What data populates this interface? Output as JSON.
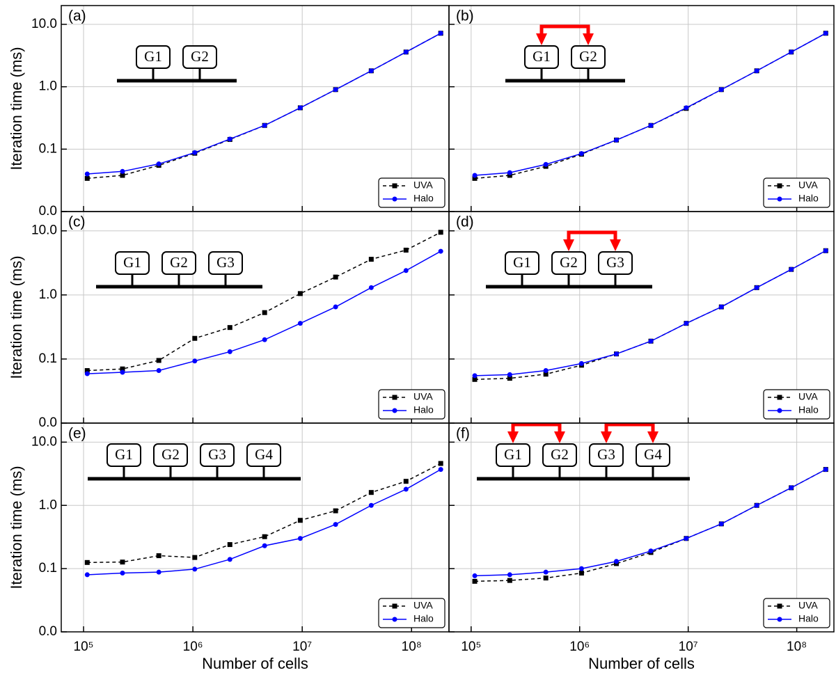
{
  "chart_data": [
    {
      "type": "line",
      "label": "(a)",
      "ylabel": "Iteration time (ms)",
      "annotations": [
        "G1",
        "G2"
      ],
      "x": [
        108000,
        227000,
        488000,
        1040000,
        2180000,
        4530000,
        9600000,
        20200000,
        42800000,
        89000000,
        185000000
      ],
      "series": [
        {
          "name": "UVA",
          "color": "#000000",
          "linestyle": "dashed",
          "marker": "square",
          "values": [
            0.034,
            0.038,
            0.055,
            0.086,
            0.143,
            0.24,
            0.46,
            0.9,
            1.8,
            3.6,
            7.2
          ]
        },
        {
          "name": "Halo",
          "color": "#0000ff",
          "linestyle": "solid",
          "marker": "circle",
          "values": [
            0.04,
            0.044,
            0.058,
            0.088,
            0.145,
            0.24,
            0.46,
            0.9,
            1.8,
            3.6,
            7.2
          ]
        }
      ],
      "xlim": [
        62500,
        220000000
      ],
      "ylim": [
        0.01,
        20
      ],
      "log_x": true,
      "log_y": true,
      "grid": true,
      "legend": "lower right",
      "xticks": [
        100000,
        1000000,
        10000000,
        100000000
      ],
      "show_xticklabels": false,
      "yticks": [
        {
          "value": 0.01,
          "label": "0.0"
        },
        0.1,
        {
          "value": 1,
          "label": "1.0"
        },
        {
          "value": 10,
          "label": "10.0"
        }
      ],
      "show_yticklabels": true
    },
    {
      "type": "line",
      "label": "(b)",
      "annotations": [
        "G1",
        "G2"
      ],
      "x": [
        108000,
        227000,
        488000,
        1040000,
        2180000,
        4530000,
        9600000,
        20200000,
        42800000,
        89000000,
        185000000
      ],
      "series": [
        {
          "name": "UVA",
          "color": "#000000",
          "linestyle": "dashed",
          "marker": "square",
          "values": [
            0.034,
            0.038,
            0.053,
            0.083,
            0.14,
            0.24,
            0.45,
            0.9,
            1.8,
            3.6,
            7.2
          ]
        },
        {
          "name": "Halo",
          "color": "#0000ff",
          "linestyle": "solid",
          "marker": "circle",
          "values": [
            0.038,
            0.042,
            0.057,
            0.085,
            0.14,
            0.24,
            0.46,
            0.9,
            1.8,
            3.6,
            7.2
          ]
        }
      ],
      "xlim": [
        62500,
        220000000
      ],
      "ylim": [
        0.01,
        20
      ],
      "log_x": true,
      "log_y": true,
      "grid": true,
      "legend": "lower right",
      "xticks": [
        100000,
        1000000,
        10000000,
        100000000
      ],
      "show_xticklabels": false,
      "yticks": [
        0.01,
        0.1,
        1,
        10
      ],
      "show_yticklabels": false
    },
    {
      "type": "line",
      "label": "(c)",
      "ylabel": "Iteration time (ms)",
      "annotations": [
        "G1",
        "G2",
        "G3"
      ],
      "x": [
        108000,
        227000,
        488000,
        1040000,
        2180000,
        4530000,
        9600000,
        20200000,
        42800000,
        89000000,
        185000000
      ],
      "series": [
        {
          "name": "UVA",
          "color": "#000000",
          "linestyle": "dashed",
          "marker": "square",
          "values": [
            0.066,
            0.07,
            0.095,
            0.21,
            0.31,
            0.53,
            1.05,
            1.9,
            3.6,
            5.0,
            9.5
          ]
        },
        {
          "name": "Halo",
          "color": "#0000ff",
          "linestyle": "solid",
          "marker": "circle",
          "values": [
            0.059,
            0.062,
            0.066,
            0.093,
            0.13,
            0.2,
            0.36,
            0.65,
            1.3,
            2.4,
            4.8
          ]
        }
      ],
      "xlim": [
        62500,
        220000000
      ],
      "ylim": [
        0.01,
        20
      ],
      "log_x": true,
      "log_y": true,
      "grid": true,
      "legend": "lower right",
      "xticks": [
        100000,
        1000000,
        10000000,
        100000000
      ],
      "show_xticklabels": false,
      "yticks": [
        {
          "value": 0.01,
          "label": "0.0"
        },
        0.1,
        {
          "value": 1,
          "label": "1.0"
        },
        {
          "value": 10,
          "label": "10.0"
        }
      ],
      "show_yticklabels": true
    },
    {
      "type": "line",
      "label": "(d)",
      "annotations": [
        "G1",
        "G2",
        "G3"
      ],
      "x": [
        108000,
        227000,
        488000,
        1040000,
        2180000,
        4530000,
        9600000,
        20200000,
        42800000,
        89000000,
        185000000
      ],
      "series": [
        {
          "name": "UVA",
          "color": "#000000",
          "linestyle": "dashed",
          "marker": "square",
          "values": [
            0.048,
            0.05,
            0.058,
            0.08,
            0.12,
            0.19,
            0.36,
            0.65,
            1.3,
            2.5,
            4.9
          ]
        },
        {
          "name": "Halo",
          "color": "#0000ff",
          "linestyle": "solid",
          "marker": "circle",
          "values": [
            0.055,
            0.057,
            0.066,
            0.085,
            0.12,
            0.19,
            0.36,
            0.65,
            1.3,
            2.5,
            4.9
          ]
        }
      ],
      "xlim": [
        62500,
        220000000
      ],
      "ylim": [
        0.01,
        20
      ],
      "log_x": true,
      "log_y": true,
      "grid": true,
      "legend": "lower right",
      "xticks": [
        100000,
        1000000,
        10000000,
        100000000
      ],
      "show_xticklabels": false,
      "yticks": [
        0.01,
        0.1,
        1,
        10
      ],
      "show_yticklabels": false
    },
    {
      "type": "line",
      "label": "(e)",
      "ylabel": "Iteration time (ms)",
      "xlabel": "Number of cells",
      "annotations": [
        "G1",
        "G2",
        "G3",
        "G4"
      ],
      "x": [
        108000,
        227000,
        488000,
        1040000,
        2180000,
        4530000,
        9600000,
        20200000,
        42800000,
        89000000,
        185000000
      ],
      "series": [
        {
          "name": "UVA",
          "color": "#000000",
          "linestyle": "dashed",
          "marker": "square",
          "values": [
            0.125,
            0.127,
            0.16,
            0.15,
            0.24,
            0.32,
            0.58,
            0.82,
            1.6,
            2.4,
            4.6
          ]
        },
        {
          "name": "Halo",
          "color": "#0000ff",
          "linestyle": "solid",
          "marker": "circle",
          "values": [
            0.08,
            0.085,
            0.088,
            0.098,
            0.14,
            0.23,
            0.3,
            0.5,
            1.0,
            1.8,
            3.7
          ]
        }
      ],
      "xlim": [
        62500,
        220000000
      ],
      "ylim": [
        0.01,
        20
      ],
      "log_x": true,
      "log_y": true,
      "grid": true,
      "legend": "lower right",
      "xticks": [
        {
          "value": 100000,
          "label": "10⁵"
        },
        {
          "value": 1000000,
          "label": "10⁶"
        },
        {
          "value": 10000000,
          "label": "10⁷"
        },
        {
          "value": 100000000,
          "label": "10⁸"
        }
      ],
      "show_xticklabels": true,
      "yticks": [
        {
          "value": 0.01,
          "label": "0.0"
        },
        0.1,
        {
          "value": 1,
          "label": "1.0"
        },
        {
          "value": 10,
          "label": "10.0"
        }
      ],
      "show_yticklabels": true
    },
    {
      "type": "line",
      "label": "(f)",
      "xlabel": "Number of cells",
      "annotations": [
        "G1",
        "G2",
        "G3",
        "G4"
      ],
      "x": [
        108000,
        227000,
        488000,
        1040000,
        2180000,
        4530000,
        9600000,
        20200000,
        42800000,
        89000000,
        185000000
      ],
      "series": [
        {
          "name": "UVA",
          "color": "#000000",
          "linestyle": "dashed",
          "marker": "square",
          "values": [
            0.063,
            0.065,
            0.071,
            0.085,
            0.12,
            0.18,
            0.3,
            0.51,
            1.0,
            1.9,
            3.7
          ]
        },
        {
          "name": "Halo",
          "color": "#0000ff",
          "linestyle": "solid",
          "marker": "circle",
          "values": [
            0.077,
            0.08,
            0.088,
            0.1,
            0.13,
            0.19,
            0.3,
            0.51,
            1.0,
            1.9,
            3.7
          ]
        }
      ],
      "xlim": [
        62500,
        220000000
      ],
      "ylim": [
        0.01,
        20
      ],
      "log_x": true,
      "log_y": true,
      "grid": true,
      "legend": "lower right",
      "xticks": [
        {
          "value": 100000,
          "label": "10⁵"
        },
        {
          "value": 1000000,
          "label": "10⁶"
        },
        {
          "value": 10000000,
          "label": "10⁷"
        },
        {
          "value": 100000000,
          "label": "10⁸"
        }
      ],
      "show_xticklabels": true,
      "yticks": [
        0.01,
        0.1,
        1,
        10
      ],
      "show_yticklabels": false
    }
  ]
}
